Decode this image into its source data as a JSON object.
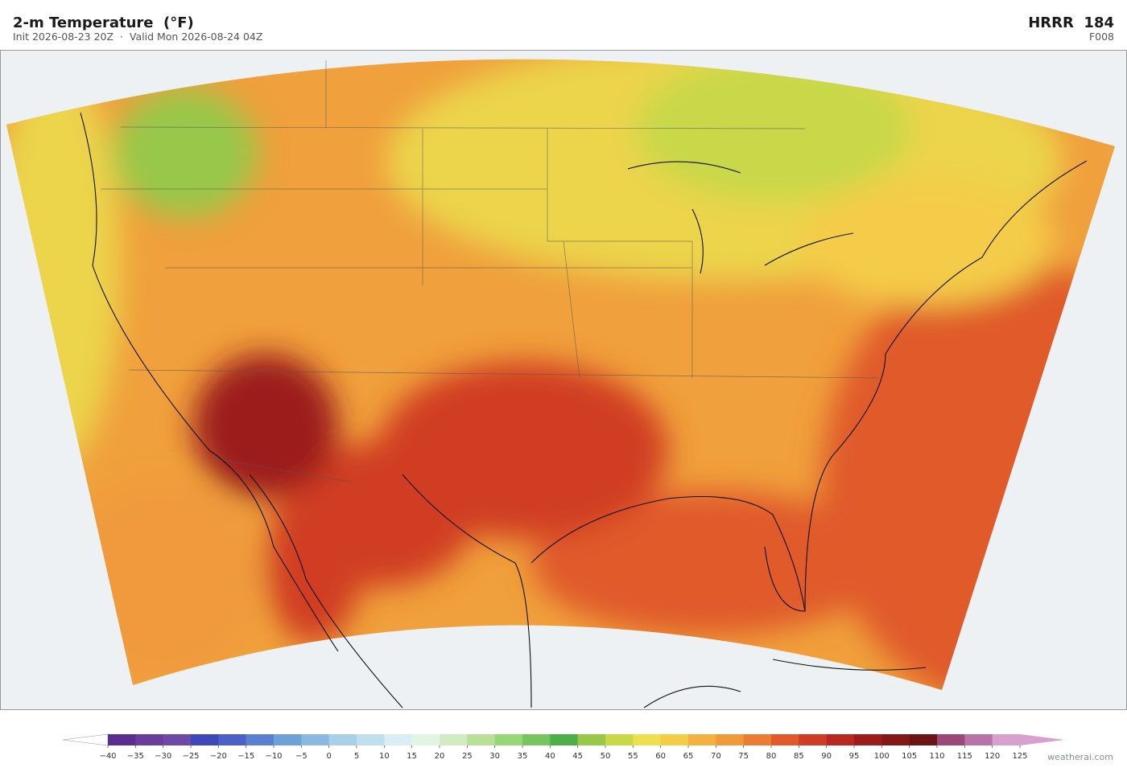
{
  "header": {
    "title": "2-m Temperature  (°F)",
    "subtitle": "Init 2026-08-23 20Z  ·  Valid Mon 2026-08-24 04Z",
    "model": "HRRR  184",
    "forecast_hour": "F008"
  },
  "colorbar": {
    "ticks": [
      {
        "value": -40,
        "label": "−40"
      },
      {
        "value": -35,
        "label": "−35"
      },
      {
        "value": -30,
        "label": "−30"
      },
      {
        "value": -25,
        "label": "−25"
      },
      {
        "value": -20,
        "label": "−20"
      },
      {
        "value": -15,
        "label": "−15"
      },
      {
        "value": -10,
        "label": "−10"
      },
      {
        "value": -5,
        "label": "−5"
      },
      0,
      5,
      10,
      15,
      20,
      25,
      30,
      35,
      40,
      45,
      50,
      55,
      60,
      65,
      70,
      75,
      80,
      85,
      90,
      95,
      100,
      105,
      110,
      115,
      120,
      125
    ],
    "colors": [
      "#5a2d91",
      "#6a3d9a",
      "#7048a8",
      "#3f48b8",
      "#4a60c8",
      "#5a80d0",
      "#70a0d8",
      "#8ab8e0",
      "#a8d0e8",
      "#c0e0ee",
      "#d8eef2",
      "#e4f4e4",
      "#d0ecc0",
      "#b8e098",
      "#98d478",
      "#78c460",
      "#4caf48",
      "#98c848",
      "#c8d848",
      "#ece050",
      "#f4cc48",
      "#f4b040",
      "#f09a3c",
      "#ec7c34",
      "#e05a2c",
      "#d03c24",
      "#b82820",
      "#9c1c1c",
      "#841818",
      "#6c1414",
      "#9c4878",
      "#b874a8",
      "#d8a0cc"
    ],
    "under_color": "#ffffff",
    "over_color": "#d8a0cc"
  },
  "credit": "weatherai.com"
}
